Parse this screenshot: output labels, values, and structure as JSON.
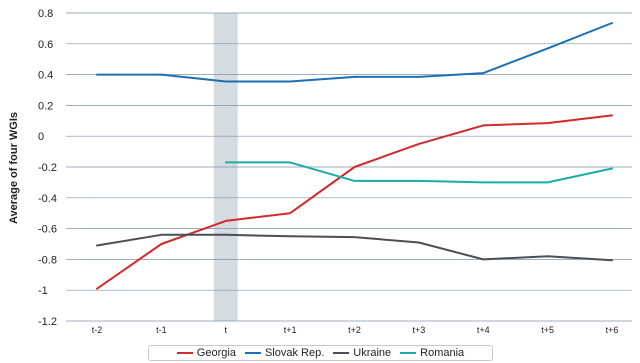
{
  "chart_data": {
    "type": "line",
    "title": "",
    "xlabel": "",
    "ylabel": "Average of four WGIs",
    "categories": [
      "t-2",
      "t-1",
      "t",
      "t+1",
      "t+2",
      "t+3",
      "t+4",
      "t+5",
      "t+6"
    ],
    "yticks": [
      "0.8",
      "0.6",
      "0.4",
      "0.2",
      "0",
      "-0.2",
      "-0.4",
      "-0.6",
      "-0.8",
      "-1",
      "-1.2"
    ],
    "ylim": [
      -1.2,
      0.8
    ],
    "grid": true,
    "highlight_category": "t",
    "legend_position": "bottom",
    "series": [
      {
        "name": "Georgia",
        "color": "#d12a2a",
        "values": [
          -0.99,
          -0.7,
          -0.55,
          -0.5,
          -0.2,
          -0.05,
          0.07,
          0.085,
          0.135
        ]
      },
      {
        "name": "Slovak Rep.",
        "color": "#1a6fb5",
        "values": [
          0.4,
          0.4,
          0.355,
          0.355,
          0.385,
          0.385,
          0.41,
          0.57,
          0.735
        ]
      },
      {
        "name": "Ukraine",
        "color": "#4a4f55",
        "values": [
          -0.71,
          -0.64,
          -0.64,
          -0.65,
          -0.655,
          -0.69,
          -0.8,
          -0.78,
          -0.805
        ]
      },
      {
        "name": "Romania",
        "color": "#1aaca5",
        "values": [
          null,
          null,
          -0.17,
          -0.17,
          -0.29,
          -0.29,
          -0.3,
          -0.3,
          -0.21
        ]
      }
    ]
  }
}
